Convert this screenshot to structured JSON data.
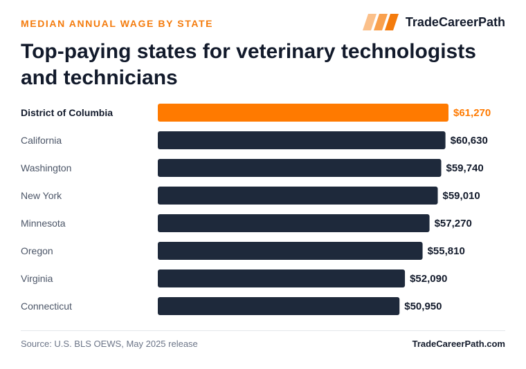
{
  "header": {
    "eyebrow": "MEDIAN ANNUAL WAGE BY STATE",
    "brand_name": "TradeCareerPath",
    "title": "Top-paying states for veterinary technologists and technicians"
  },
  "footer": {
    "source": "Source: U.S. BLS OEWS, May 2025 release",
    "site": "TradeCareerPath.com"
  },
  "colors": {
    "accent": "#ff7a00",
    "bar": "#1e293b",
    "text_dark": "#121a2b",
    "label_muted": "#4b5567"
  },
  "chart_data": {
    "type": "bar",
    "orientation": "horizontal",
    "categories": [
      "District of Columbia",
      "California",
      "Washington",
      "New York",
      "Minnesota",
      "Oregon",
      "Virginia",
      "Connecticut"
    ],
    "values": [
      61270,
      60630,
      59740,
      59010,
      57270,
      55810,
      52090,
      50950
    ],
    "value_labels": [
      "$61,270",
      "$60,630",
      "$59,740",
      "$59,010",
      "$57,270",
      "$55,810",
      "$52,090",
      "$50,950"
    ],
    "highlight_index": 0,
    "xlim": [
      0,
      61270
    ],
    "grid": false,
    "legend": "none"
  }
}
